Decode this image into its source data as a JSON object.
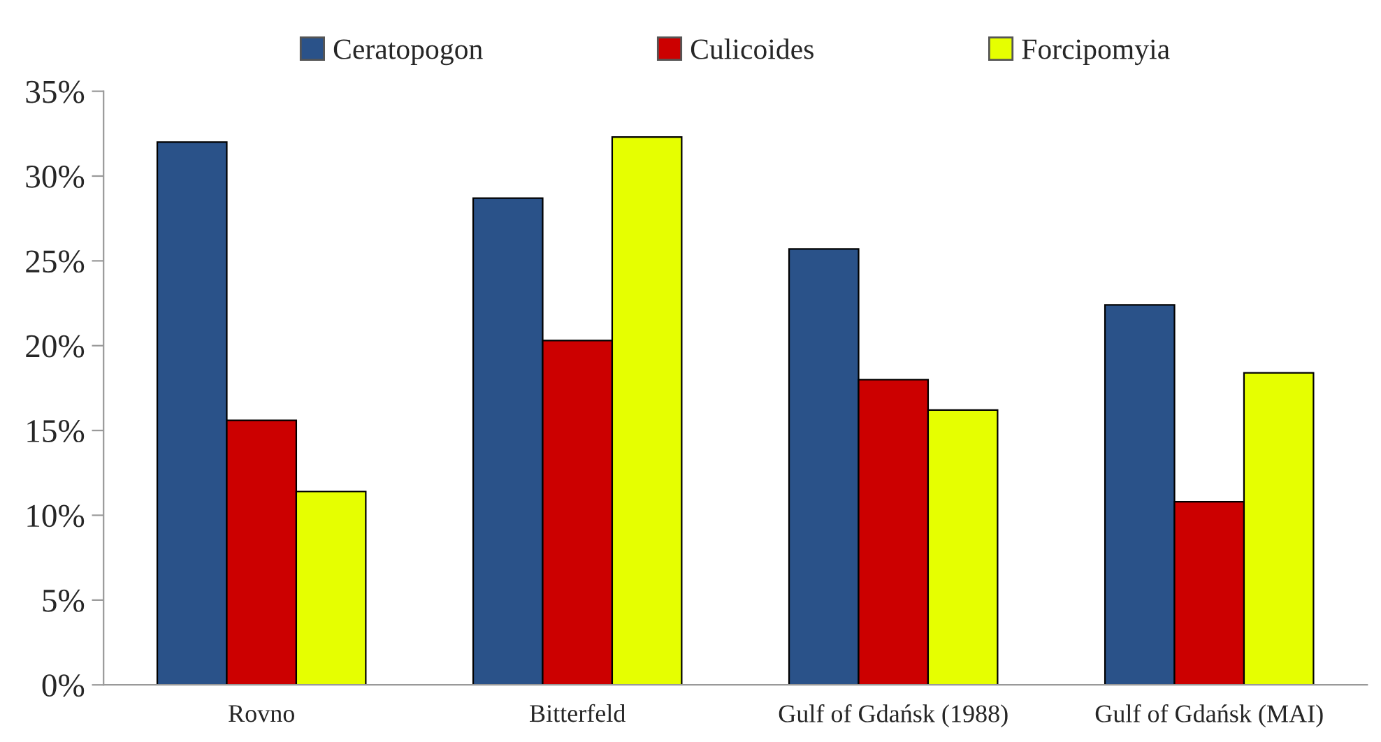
{
  "chart_data": {
    "type": "bar",
    "categories": [
      "Rovno",
      "Bitterfeld",
      "Gulf of Gdańsk (1988)",
      "Gulf of Gdańsk (MAI)"
    ],
    "series": [
      {
        "name": "Ceratopogon",
        "color": "#2a5289",
        "values": [
          32.0,
          28.7,
          25.7,
          22.4
        ]
      },
      {
        "name": "Culicoides",
        "color": "#cc0000",
        "values": [
          15.6,
          20.3,
          18.0,
          10.8
        ]
      },
      {
        "name": "Forcipomyia",
        "color": "#e6ff00",
        "values": [
          11.4,
          32.3,
          16.2,
          18.4
        ]
      }
    ],
    "ylim": [
      0,
      35
    ],
    "yticks": [
      {
        "value": 0,
        "label": "0%"
      },
      {
        "value": 5,
        "label": "5%"
      },
      {
        "value": 10,
        "label": "10%"
      },
      {
        "value": 15,
        "label": "15%"
      },
      {
        "value": 20,
        "label": "20%"
      },
      {
        "value": 25,
        "label": "25%"
      },
      {
        "value": 30,
        "label": "30%"
      },
      {
        "value": 35,
        "label": "35%"
      }
    ],
    "grid": false,
    "legend": "top"
  }
}
